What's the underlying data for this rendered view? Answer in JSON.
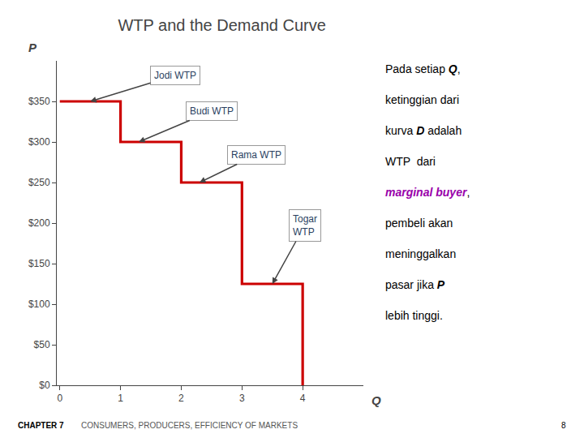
{
  "chart_data": {
    "type": "line",
    "title": "WTP and the Demand Curve",
    "x": [
      0,
      1,
      1,
      2,
      2,
      3,
      3,
      4,
      4
    ],
    "values": [
      350,
      350,
      300,
      300,
      250,
      250,
      125,
      125,
      0
    ],
    "color": "#cc0000",
    "xlabel": "Q",
    "ylabel": "P",
    "xlim": [
      -0.05,
      5.0
    ],
    "ylim": [
      0,
      400
    ],
    "xticks": [
      0,
      1,
      2,
      3,
      4
    ],
    "yticks": [
      {
        "value": 0,
        "label": "$0"
      },
      {
        "value": 50,
        "label": "$50"
      },
      {
        "value": 100,
        "label": "$100"
      },
      {
        "value": 150,
        "label": "$150"
      },
      {
        "value": 200,
        "label": "$200"
      },
      {
        "value": 250,
        "label": "$250"
      },
      {
        "value": 300,
        "label": "$300"
      },
      {
        "value": 350,
        "label": "$350"
      }
    ],
    "grid": false,
    "annotations": [
      {
        "text": "Jodi WTP",
        "x": 0.5,
        "y": 350
      },
      {
        "text": "Budi WTP",
        "x": 1.3,
        "y": 300
      },
      {
        "text": "Rama WTP",
        "x": 2.3,
        "y": 250
      },
      {
        "text": "Togar\nWTP",
        "x": 3.5,
        "y": 125
      }
    ],
    "note": [
      [
        {
          "text": "Pada setiap "
        },
        {
          "text": "Q",
          "emphasis": true
        },
        {
          "text": ","
        }
      ],
      [
        {
          "text": "ketinggian dari"
        }
      ],
      [
        {
          "text": "kurva "
        },
        {
          "text": "D",
          "emphasis": true
        },
        {
          "text": " adalah"
        }
      ],
      [
        {
          "text": "WTP  dari"
        }
      ],
      [
        {
          "text": "marginal buyer",
          "emphasis": true,
          "color": "#9900aa"
        },
        {
          "text": ","
        }
      ],
      [
        {
          "text": "pembeli akan"
        }
      ],
      [
        {
          "text": "meninggalkan"
        }
      ],
      [
        {
          "text": "pasar jika "
        },
        {
          "text": "P",
          "emphasis": true
        }
      ],
      [
        {
          "text": "lebih tinggi."
        }
      ]
    ],
    "footer": [
      "CHAPTER 7",
      "CONSUMERS, PRODUCERS, EFFICIENCY OF MARKETS",
      "8"
    ]
  }
}
